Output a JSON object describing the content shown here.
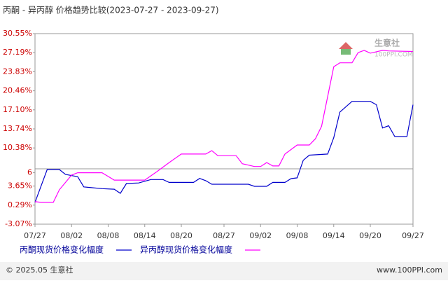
{
  "chart_data": {
    "type": "line",
    "title": "丙酮 - 异丙醇 价格趋势比较(2023-07-27 - 2023-09-27)",
    "xlim": [
      "07/27",
      "09/27"
    ],
    "xticks": [
      "07/27",
      "08/02",
      "08/08",
      "08/14",
      "08/20",
      "08/27",
      "09/02",
      "09/08",
      "09/14",
      "09/20",
      "09/27"
    ],
    "ylim": [
      -3.07,
      30.55
    ],
    "yticks": [
      {
        "value": 30.55,
        "label": "30.55%"
      },
      {
        "value": 27.19,
        "label": "27.19%"
      },
      {
        "value": 23.83,
        "label": "23.83%"
      },
      {
        "value": 20.46,
        "label": "20.46%"
      },
      {
        "value": 17.1,
        "label": "17.10%"
      },
      {
        "value": 13.74,
        "label": "13.74%"
      },
      {
        "value": 10.38,
        "label": "10.38%"
      },
      6,
      {
        "value": 3.65,
        "label": "3.65%"
      },
      {
        "value": 0.29,
        "label": "0.29%"
      },
      {
        "value": -3.07,
        "label": "-3.07%"
      }
    ],
    "grid": false,
    "series": [
      {
        "name": "丙酮现货价格变化幅度",
        "color": "#0000cc",
        "x": [
          "07/27",
          "07/29",
          "07/31",
          "08/01",
          "08/03",
          "08/04",
          "08/07",
          "08/09",
          "08/10",
          "08/11",
          "08/13",
          "08/15",
          "08/17",
          "08/18",
          "08/22",
          "08/23",
          "08/24",
          "08/25",
          "08/31",
          "09/01",
          "09/03",
          "09/04",
          "09/06",
          "09/07",
          "09/08",
          "09/09",
          "09/10",
          "09/13",
          "09/14",
          "09/15",
          "09/17",
          "09/20",
          "09/21",
          "09/22",
          "09/23",
          "09/24",
          "09/26",
          "09/27"
        ],
        "values": [
          0.77,
          6.57,
          6.57,
          5.7,
          5.3,
          3.5,
          3.2,
          3.1,
          2.37,
          4.1,
          4.2,
          4.8,
          4.8,
          4.3,
          4.3,
          5.0,
          4.6,
          3.97,
          3.97,
          3.6,
          3.6,
          4.3,
          4.3,
          4.97,
          5.1,
          8.2,
          9.1,
          9.3,
          12.2,
          16.7,
          18.6,
          18.6,
          18.0,
          13.9,
          14.3,
          12.4,
          12.4,
          18.0
        ]
      },
      {
        "name": "异丙醇现货价格变化幅度",
        "color": "#ff00ff",
        "x": [
          "07/27",
          "07/28",
          "07/30",
          "07/31",
          "08/02",
          "08/03",
          "08/07",
          "08/09",
          "08/14",
          "08/16",
          "08/18",
          "08/20",
          "08/24",
          "08/25",
          "08/26",
          "08/29",
          "08/30",
          "09/01",
          "09/02",
          "09/03",
          "09/04",
          "09/05",
          "09/06",
          "09/08",
          "09/10",
          "09/11",
          "09/12",
          "09/14",
          "09/15",
          "09/17",
          "09/18",
          "09/19",
          "09/20",
          "09/22",
          "09/23",
          "09/27"
        ],
        "values": [
          0.9,
          0.77,
          0.77,
          3.0,
          5.6,
          6.0,
          6.0,
          4.7,
          4.7,
          6.2,
          7.8,
          9.3,
          9.3,
          9.9,
          9.0,
          9.0,
          7.6,
          7.1,
          7.1,
          7.8,
          7.2,
          7.2,
          9.3,
          10.9,
          10.9,
          12.0,
          14.2,
          24.7,
          25.4,
          25.4,
          27.2,
          27.6,
          27.1,
          27.6,
          27.5,
          27.4
        ]
      }
    ]
  },
  "watermark": {
    "name": "生意社",
    "site": "100PPI.COM"
  },
  "footer": {
    "left": "© 2025.05 生意社",
    "right": "www.100PPI.com"
  }
}
